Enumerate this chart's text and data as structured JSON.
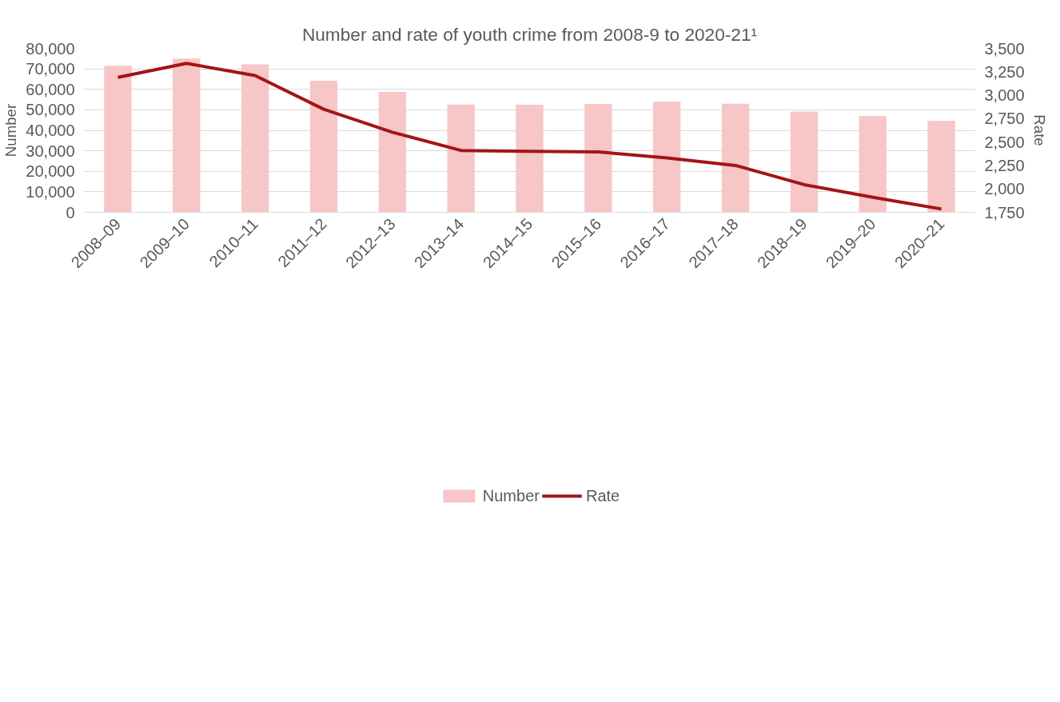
{
  "chart_data": {
    "type": "bar",
    "title": "Number and rate of youth crime from 2008-9 to 2020-21¹",
    "ylabel": "Number",
    "y2label": "Rate",
    "categories": [
      "2008–09",
      "2009–10",
      "2010–11",
      "2011–12",
      "2012–13",
      "2013–14",
      "2014–15",
      "2015–16",
      "2016–17",
      "2017–18",
      "2018–19",
      "2019–20",
      "2020–21"
    ],
    "series": [
      {
        "name": "Number",
        "color": "#f7c6c6",
        "values": [
          71500,
          75000,
          72200,
          64200,
          58700,
          52600,
          52500,
          52900,
          54000,
          53000,
          49200,
          46900,
          44600
        ]
      },
      {
        "name": "Rate",
        "type": "line",
        "axis": "y2",
        "color": "#a31515",
        "values": [
          3190,
          3340,
          3210,
          2850,
          2605,
          2410,
          2400,
          2395,
          2330,
          2250,
          2045,
          1910,
          1785
        ]
      }
    ],
    "ylim": [
      0,
      80000
    ],
    "yticks": [
      {
        "value": 0,
        "label": "0"
      },
      {
        "value": 10000,
        "label": "10,000"
      },
      {
        "value": 20000,
        "label": "20,000"
      },
      {
        "value": 30000,
        "label": "30,000"
      },
      {
        "value": 40000,
        "label": "40,000"
      },
      {
        "value": 50000,
        "label": "50,000"
      },
      {
        "value": 60000,
        "label": "60,000"
      },
      {
        "value": 70000,
        "label": "70,000"
      },
      {
        "value": 80000,
        "label": "80,000"
      }
    ],
    "y2lim": [
      1750,
      3500
    ],
    "y2ticks": [
      {
        "value": 1750,
        "label": "1,750"
      },
      {
        "value": 2000,
        "label": "2,000"
      },
      {
        "value": 2250,
        "label": "2,250"
      },
      {
        "value": 2500,
        "label": "2,500"
      },
      {
        "value": 2750,
        "label": "2,750"
      },
      {
        "value": 3000,
        "label": "3,000"
      },
      {
        "value": 3250,
        "label": "3,250"
      },
      {
        "value": 3500,
        "label": "3,500"
      }
    ],
    "grid": "y",
    "legend": "bottom",
    "marker": "none",
    "line_style": "solid"
  }
}
